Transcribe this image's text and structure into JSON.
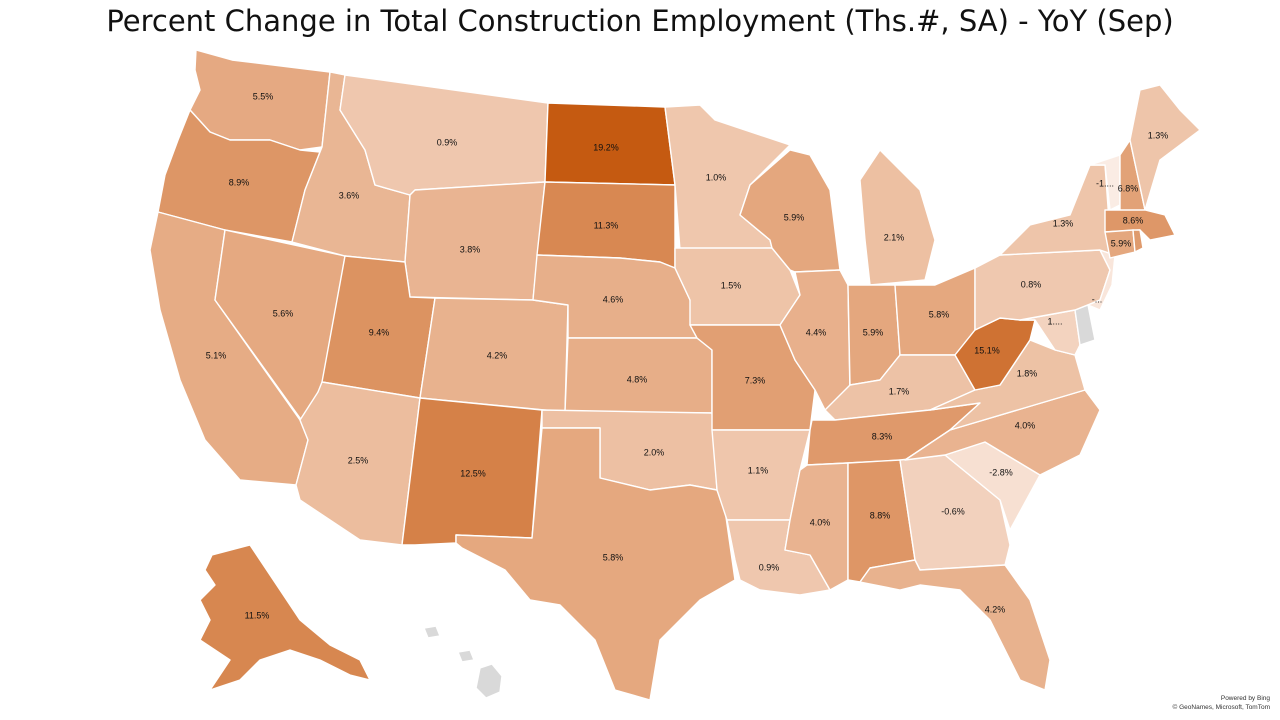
{
  "title": "Percent Change in Total Construction Employment (Ths.#, SA) - YoY (Sep)",
  "credit": {
    "line1": "Powered by Bing",
    "line2": "© GeoNames, Microsoft, TomTom"
  },
  "colors": {
    "scale_low": "#f7e0d2",
    "scale_mid": "#e6ab84",
    "scale_high": "#c55a11",
    "no_data": "#d9d9d9",
    "border": "#ffffff"
  },
  "map_data": {
    "type": "choropleth",
    "metric": "YoY percent change",
    "states": [
      {
        "id": "WA",
        "value": 5.5,
        "label": "5.5%"
      },
      {
        "id": "OR",
        "value": 8.9,
        "label": "8.9%"
      },
      {
        "id": "CA",
        "value": 5.1,
        "label": "5.1%"
      },
      {
        "id": "NV",
        "value": 5.6,
        "label": "5.6%"
      },
      {
        "id": "ID",
        "value": 3.6,
        "label": "3.6%"
      },
      {
        "id": "MT",
        "value": 0.9,
        "label": "0.9%"
      },
      {
        "id": "WY",
        "value": 3.8,
        "label": "3.8%"
      },
      {
        "id": "UT",
        "value": 9.4,
        "label": "9.4%"
      },
      {
        "id": "AZ",
        "value": 2.5,
        "label": "2.5%"
      },
      {
        "id": "CO",
        "value": 4.2,
        "label": "4.2%"
      },
      {
        "id": "NM",
        "value": 12.5,
        "label": "12.5%"
      },
      {
        "id": "ND",
        "value": 19.2,
        "label": "19.2%"
      },
      {
        "id": "SD",
        "value": 11.3,
        "label": "11.3%"
      },
      {
        "id": "NE",
        "value": 4.6,
        "label": "4.6%"
      },
      {
        "id": "KS",
        "value": 4.8,
        "label": "4.8%"
      },
      {
        "id": "OK",
        "value": 2.0,
        "label": "2.0%"
      },
      {
        "id": "TX",
        "value": 5.8,
        "label": "5.8%"
      },
      {
        "id": "MN",
        "value": 1.0,
        "label": "1.0%"
      },
      {
        "id": "IA",
        "value": 1.5,
        "label": "1.5%"
      },
      {
        "id": "MO",
        "value": 7.3,
        "label": "7.3%"
      },
      {
        "id": "AR",
        "value": 1.1,
        "label": "1.1%"
      },
      {
        "id": "LA",
        "value": 0.9,
        "label": "0.9%"
      },
      {
        "id": "WI",
        "value": 5.9,
        "label": "5.9%"
      },
      {
        "id": "IL",
        "value": 4.4,
        "label": "4.4%"
      },
      {
        "id": "MI",
        "value": 2.1,
        "label": "2.1%"
      },
      {
        "id": "IN",
        "value": 5.9,
        "label": "5.9%"
      },
      {
        "id": "OH",
        "value": 5.8,
        "label": "5.8%"
      },
      {
        "id": "KY",
        "value": 1.7,
        "label": "1.7%"
      },
      {
        "id": "TN",
        "value": 8.3,
        "label": "8.3%"
      },
      {
        "id": "MS",
        "value": 4.0,
        "label": "4.0%"
      },
      {
        "id": "AL",
        "value": 8.8,
        "label": "8.8%"
      },
      {
        "id": "GA",
        "value": -0.6,
        "label": "-0.6%"
      },
      {
        "id": "FL",
        "value": 4.2,
        "label": "4.2%"
      },
      {
        "id": "SC",
        "value": -2.8,
        "label": "-2.8%"
      },
      {
        "id": "NC",
        "value": 4.0,
        "label": "4.0%"
      },
      {
        "id": "VA",
        "value": 1.8,
        "label": "1.8%"
      },
      {
        "id": "WV",
        "value": 15.1,
        "label": "15.1%"
      },
      {
        "id": "MD",
        "value": null,
        "label": "1...."
      },
      {
        "id": "PA",
        "value": 0.8,
        "label": "0.8%"
      },
      {
        "id": "NY",
        "value": 1.3,
        "label": "1.3%"
      },
      {
        "id": "NJ",
        "value": null,
        "label": "-..."
      },
      {
        "id": "DE",
        "value": null,
        "label": ""
      },
      {
        "id": "CT",
        "value": 5.9,
        "label": "5.9%"
      },
      {
        "id": "MA",
        "value": 8.6,
        "label": "8.6%"
      },
      {
        "id": "VT",
        "value": null,
        "label": "-1...."
      },
      {
        "id": "NH",
        "value": 6.8,
        "label": "6.8%"
      },
      {
        "id": "ME",
        "value": 1.3,
        "label": "1.3%"
      },
      {
        "id": "RI",
        "value": null,
        "label": ""
      },
      {
        "id": "AK",
        "value": 11.5,
        "label": "11.5%"
      },
      {
        "id": "HI",
        "value": null,
        "label": ""
      }
    ]
  }
}
